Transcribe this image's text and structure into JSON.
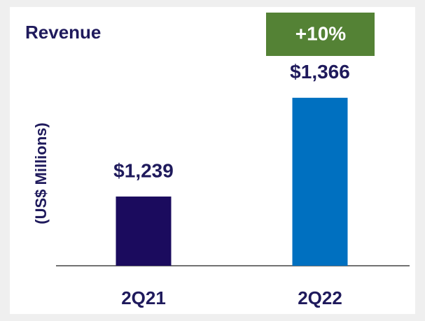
{
  "chart_data": {
    "type": "bar",
    "title": "Revenue",
    "y_label": "(US$ Millions)",
    "annotation": "+10%",
    "categories": [
      "2Q21",
      "2Q22"
    ],
    "values": [
      1239,
      1366
    ],
    "value_labels": [
      "$1,239",
      "$1,366"
    ],
    "colors": [
      "#1b0b5e",
      "#0070c0"
    ],
    "ylim": [
      1150,
      1400
    ]
  }
}
